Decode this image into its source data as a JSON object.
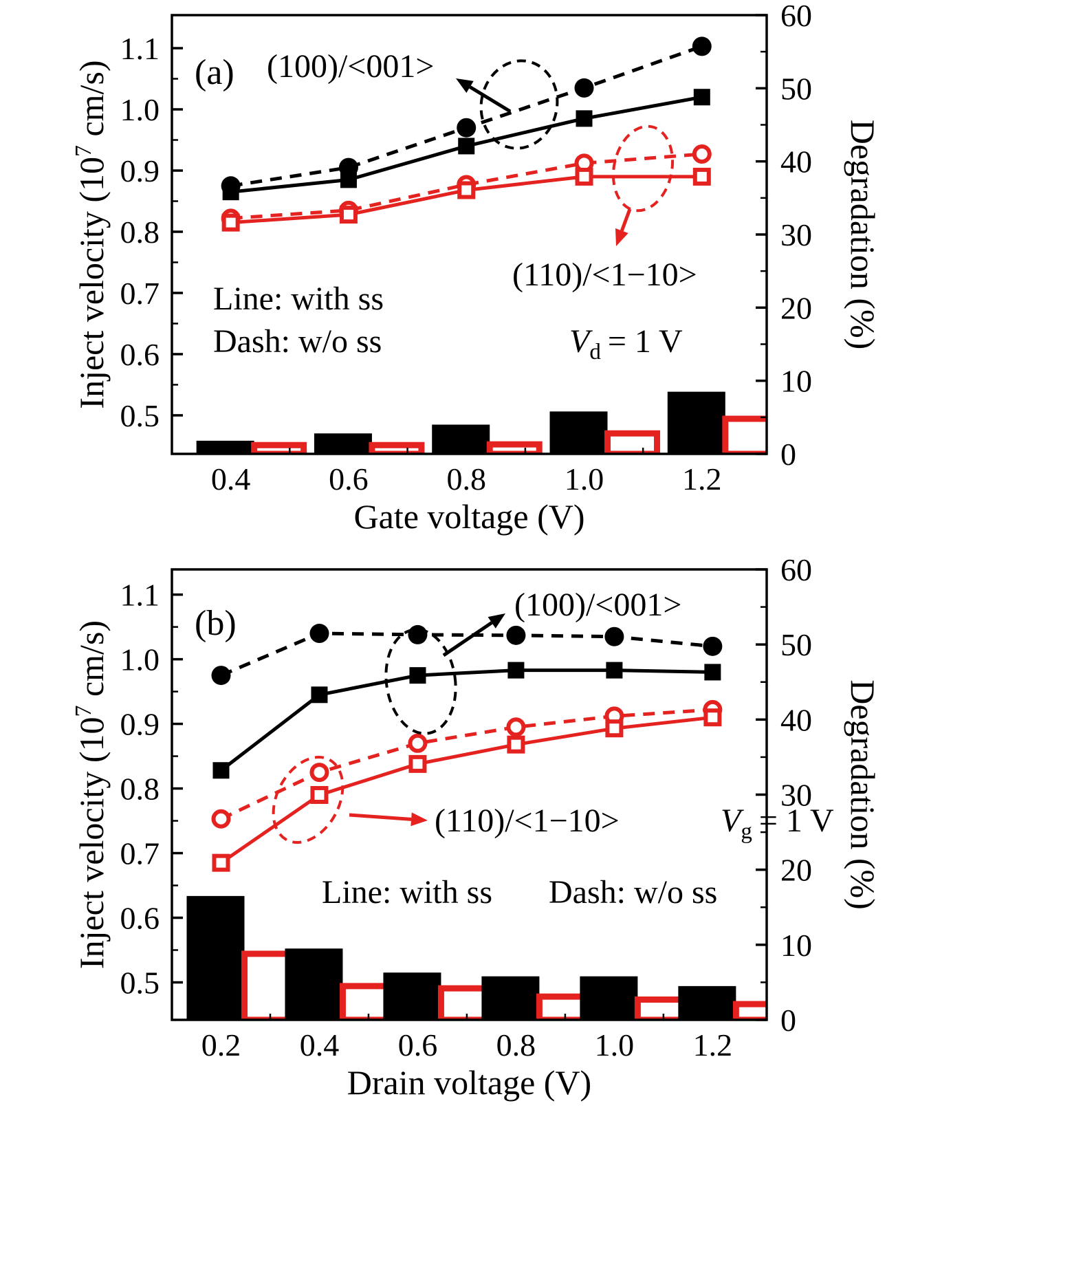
{
  "figure": {
    "background": "#ffffff"
  },
  "colors": {
    "black": "#000000",
    "red": "#e42320",
    "white": "#ffffff"
  },
  "chart_data": [
    {
      "id": "a",
      "type": "line+bar",
      "panel_label": "(a)",
      "xlabel": "Gate voltage (V)",
      "ylabel_left_parts": [
        "Inject velocity (10",
        "7",
        " cm/s)"
      ],
      "ylabel_right": "Degradation (%)",
      "x": [
        0.4,
        0.6,
        0.8,
        1.0,
        1.2
      ],
      "xlim": [
        0.3,
        1.31
      ],
      "xtick_labels": [
        "0.4",
        "0.6",
        "0.8",
        "1.0",
        "1.2"
      ],
      "ylim_left": [
        0.437,
        1.154
      ],
      "ytick_left_values": [
        0.5,
        0.6,
        0.7,
        0.8,
        0.9,
        1.0,
        1.1
      ],
      "ytick_left_labels": [
        "0.5",
        "0.6",
        "0.7",
        "0.8",
        "0.9",
        "1.0",
        "1.1"
      ],
      "ylim_right": [
        0,
        60
      ],
      "ytick_right_values": [
        0,
        10,
        20,
        30,
        40,
        50,
        60
      ],
      "ytick_right_labels": [
        "0",
        "10",
        "20",
        "30",
        "40",
        "50",
        "60"
      ],
      "series": [
        {
          "name": "(100)/<001> w/o ss",
          "color": "black",
          "style": "dash",
          "marker": "circle-filled",
          "values": [
            0.875,
            0.905,
            0.97,
            1.035,
            1.103
          ]
        },
        {
          "name": "(100)/<001> with ss",
          "color": "black",
          "style": "solid",
          "marker": "square-filled",
          "values": [
            0.865,
            0.885,
            0.94,
            0.985,
            1.02
          ]
        },
        {
          "name": "(110)/<1−10> w/o ss",
          "color": "red",
          "style": "dash",
          "marker": "circle-open",
          "values": [
            0.822,
            0.835,
            0.877,
            0.912,
            0.927
          ]
        },
        {
          "name": "(110)/<1−10> with ss",
          "color": "red",
          "style": "solid",
          "marker": "square-open",
          "values": [
            0.815,
            0.828,
            0.868,
            0.89,
            0.89
          ]
        }
      ],
      "bars_degradation_pct": [
        {
          "name": "(100)/<001> degradation",
          "color": "black",
          "style": "filled",
          "values": [
            1.8,
            2.8,
            4.0,
            5.8,
            8.5
          ]
        },
        {
          "name": "(110)/<1−10> degradation",
          "color": "red",
          "style": "open",
          "values": [
            1.2,
            1.2,
            1.3,
            2.8,
            4.8
          ]
        }
      ],
      "annotations": {
        "label_100": "(100)/<001>",
        "label_110": "(110)/<1−10>",
        "line_note": "Line: with ss",
        "dash_note": "Dash: w/o ss",
        "bias_var": "V",
        "bias_sub": "d",
        "bias_rest": "= 1 V"
      }
    },
    {
      "id": "b",
      "type": "line+bar",
      "panel_label": "(b)",
      "xlabel": "Drain voltage (V)",
      "ylabel_left_parts": [
        "Inject velocity (10",
        "7",
        " cm/s)"
      ],
      "ylabel_right": "Degradation (%)",
      "x": [
        0.2,
        0.4,
        0.6,
        0.8,
        1.0,
        1.2
      ],
      "xlim": [
        0.1,
        1.31
      ],
      "xtick_labels": [
        "0.2",
        "0.4",
        "0.6",
        "0.8",
        "1.0",
        "1.2"
      ],
      "ylim_left": [
        0.442,
        1.139
      ],
      "ytick_left_values": [
        0.5,
        0.6,
        0.7,
        0.8,
        0.9,
        1.0,
        1.1
      ],
      "ytick_left_labels": [
        "0.5",
        "0.6",
        "0.7",
        "0.8",
        "0.9",
        "1.0",
        "1.1"
      ],
      "ylim_right": [
        0,
        60
      ],
      "ytick_right_values": [
        0,
        10,
        20,
        30,
        40,
        50,
        60
      ],
      "ytick_right_labels": [
        "0",
        "10",
        "20",
        "30",
        "40",
        "50",
        "60"
      ],
      "series": [
        {
          "name": "(100)/<001> w/o ss",
          "color": "black",
          "style": "dash",
          "marker": "circle-filled",
          "values": [
            0.975,
            1.04,
            1.038,
            1.037,
            1.035,
            1.02
          ]
        },
        {
          "name": "(100)/<001> with ss",
          "color": "black",
          "style": "solid",
          "marker": "square-filled",
          "values": [
            0.828,
            0.945,
            0.975,
            0.983,
            0.983,
            0.98
          ]
        },
        {
          "name": "(110)/<1−10> w/o ss",
          "color": "red",
          "style": "dash",
          "marker": "circle-open",
          "values": [
            0.753,
            0.825,
            0.87,
            0.895,
            0.912,
            0.922
          ]
        },
        {
          "name": "(110)/<1−10> with ss",
          "color": "red",
          "style": "solid",
          "marker": "square-open",
          "values": [
            0.685,
            0.79,
            0.838,
            0.868,
            0.893,
            0.91
          ]
        }
      ],
      "bars_degradation_pct": [
        {
          "name": "(100)/<001> degradation",
          "color": "black",
          "style": "filled",
          "values": [
            16.5,
            9.5,
            6.3,
            5.8,
            5.8,
            4.5
          ]
        },
        {
          "name": "(110)/<1−10> degradation",
          "color": "red",
          "style": "open",
          "values": [
            8.8,
            4.5,
            4.2,
            3.1,
            2.7,
            2.1
          ]
        }
      ],
      "annotations": {
        "label_100": "(100)/<001>",
        "label_110": "(110)/<1−10>",
        "line_note": "Line: with ss",
        "dash_note": "Dash: w/o ss",
        "bias_var": "V",
        "bias_sub": "g",
        "bias_rest": "= 1 V"
      }
    }
  ]
}
